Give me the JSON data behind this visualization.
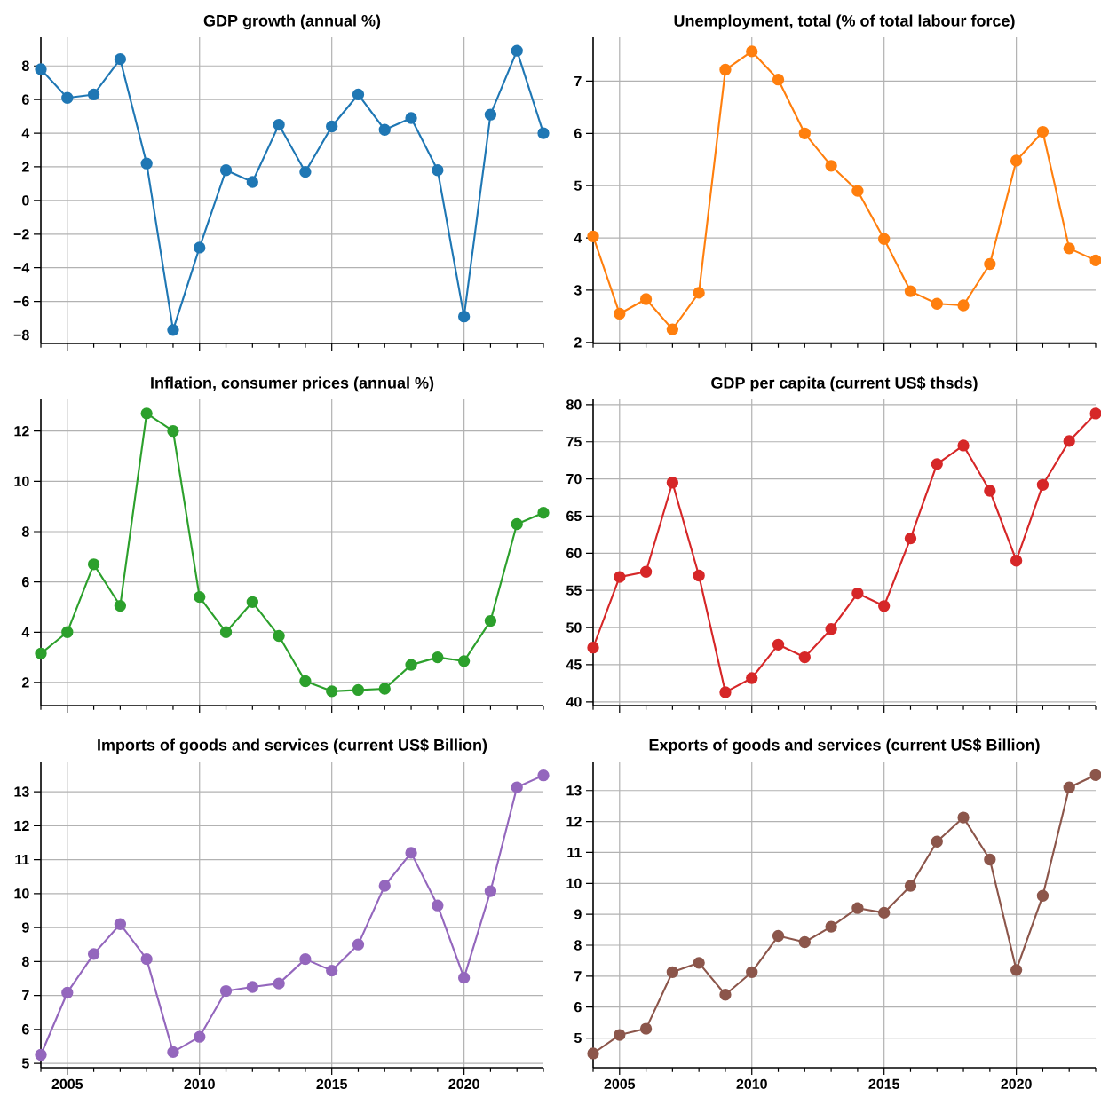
{
  "chart_data": [
    {
      "type": "line",
      "title": "GDP growth (annual %)",
      "x": [
        2004,
        2005,
        2006,
        2007,
        2008,
        2009,
        2010,
        2011,
        2012,
        2013,
        2014,
        2015,
        2016,
        2017,
        2018,
        2019,
        2020,
        2021,
        2022,
        2023
      ],
      "series": [
        {
          "color": "#1f77b4",
          "values": [
            7.8,
            6.1,
            6.3,
            8.4,
            2.2,
            -7.7,
            -2.8,
            1.8,
            1.1,
            4.5,
            1.7,
            4.4,
            6.3,
            4.2,
            4.9,
            1.8,
            -6.9,
            5.1,
            8.9,
            4.0
          ]
        }
      ],
      "xlim": [
        2004,
        2023
      ],
      "ylim": [
        -8.5,
        9.7
      ],
      "xticks": [
        {
          "value": 2004,
          "label": null
        },
        2005,
        {
          "value": 2006,
          "label": null
        },
        {
          "value": 2007,
          "label": null
        },
        {
          "value": 2008,
          "label": null
        },
        {
          "value": 2009,
          "label": null
        },
        2010,
        {
          "value": 2011,
          "label": null
        },
        {
          "value": 2012,
          "label": null
        },
        {
          "value": 2013,
          "label": null
        },
        {
          "value": 2014,
          "label": null
        },
        2015,
        {
          "value": 2016,
          "label": null
        },
        {
          "value": 2017,
          "label": null
        },
        {
          "value": 2018,
          "label": null
        },
        {
          "value": 2019,
          "label": null
        },
        2020,
        {
          "value": 2021,
          "label": null
        },
        {
          "value": 2022,
          "label": null
        },
        {
          "value": 2023,
          "label": null
        }
      ],
      "yticks": [
        {
          "value": -8,
          "label": "−8"
        },
        {
          "value": -6,
          "label": "−6"
        },
        {
          "value": -4,
          "label": "−4"
        },
        {
          "value": -2,
          "label": "−2"
        },
        0,
        2,
        4,
        6,
        8
      ],
      "grid": true,
      "marker": "circle",
      "line_style": "solid",
      "tick_labels": "y"
    },
    {
      "type": "line",
      "title": "Unemployment, total (% of total labour force)",
      "x": [
        2004,
        2005,
        2006,
        2007,
        2008,
        2009,
        2010,
        2011,
        2012,
        2013,
        2014,
        2015,
        2016,
        2017,
        2018,
        2019,
        2020,
        2021,
        2022,
        2023
      ],
      "series": [
        {
          "color": "#ff7f0e",
          "values": [
            4.03,
            2.55,
            2.83,
            2.25,
            2.95,
            7.22,
            7.57,
            7.03,
            6.0,
            5.38,
            4.9,
            3.98,
            2.98,
            2.74,
            2.71,
            3.5,
            5.48,
            6.03,
            3.8,
            3.57
          ]
        }
      ],
      "xlim": [
        2004,
        2023
      ],
      "ylim": [
        1.98,
        7.84
      ],
      "xticks": [
        {
          "value": 2004,
          "label": null
        },
        2005,
        {
          "value": 2006,
          "label": null
        },
        {
          "value": 2007,
          "label": null
        },
        {
          "value": 2008,
          "label": null
        },
        {
          "value": 2009,
          "label": null
        },
        2010,
        {
          "value": 2011,
          "label": null
        },
        {
          "value": 2012,
          "label": null
        },
        {
          "value": 2013,
          "label": null
        },
        {
          "value": 2014,
          "label": null
        },
        2015,
        {
          "value": 2016,
          "label": null
        },
        {
          "value": 2017,
          "label": null
        },
        {
          "value": 2018,
          "label": null
        },
        {
          "value": 2019,
          "label": null
        },
        2020,
        {
          "value": 2021,
          "label": null
        },
        {
          "value": 2022,
          "label": null
        },
        {
          "value": 2023,
          "label": null
        }
      ],
      "yticks": [
        2,
        3,
        4,
        5,
        6,
        7
      ],
      "grid": true,
      "marker": "circle",
      "line_style": "solid",
      "tick_labels": "y"
    },
    {
      "type": "line",
      "title": "Inflation, consumer prices (annual %)",
      "x": [
        2004,
        2005,
        2006,
        2007,
        2008,
        2009,
        2010,
        2011,
        2012,
        2013,
        2014,
        2015,
        2016,
        2017,
        2018,
        2019,
        2020,
        2021,
        2022,
        2023
      ],
      "series": [
        {
          "color": "#2ca02c",
          "values": [
            3.15,
            4.0,
            6.7,
            5.05,
            12.7,
            12.0,
            5.4,
            4.0,
            5.2,
            3.85,
            2.05,
            1.65,
            1.7,
            1.75,
            2.7,
            3.0,
            2.85,
            4.45,
            8.3,
            8.75
          ]
        }
      ],
      "xlim": [
        2004,
        2023
      ],
      "ylim": [
        1.08,
        13.26
      ],
      "xticks": [
        {
          "value": 2004,
          "label": null
        },
        2005,
        {
          "value": 2006,
          "label": null
        },
        {
          "value": 2007,
          "label": null
        },
        {
          "value": 2008,
          "label": null
        },
        {
          "value": 2009,
          "label": null
        },
        2010,
        {
          "value": 2011,
          "label": null
        },
        {
          "value": 2012,
          "label": null
        },
        {
          "value": 2013,
          "label": null
        },
        {
          "value": 2014,
          "label": null
        },
        2015,
        {
          "value": 2016,
          "label": null
        },
        {
          "value": 2017,
          "label": null
        },
        {
          "value": 2018,
          "label": null
        },
        {
          "value": 2019,
          "label": null
        },
        2020,
        {
          "value": 2021,
          "label": null
        },
        {
          "value": 2022,
          "label": null
        },
        {
          "value": 2023,
          "label": null
        }
      ],
      "yticks": [
        2,
        4,
        6,
        8,
        10,
        12
      ],
      "grid": true,
      "marker": "circle",
      "line_style": "solid",
      "tick_labels": "y"
    },
    {
      "type": "line",
      "title": "GDP per capita (current US$ thsds)",
      "x": [
        2004,
        2005,
        2006,
        2007,
        2008,
        2009,
        2010,
        2011,
        2012,
        2013,
        2014,
        2015,
        2016,
        2017,
        2018,
        2019,
        2020,
        2021,
        2022,
        2023
      ],
      "series": [
        {
          "color": "#d62728",
          "values": [
            47.3,
            56.8,
            57.5,
            69.5,
            57.0,
            41.3,
            43.2,
            47.7,
            46.0,
            49.8,
            54.6,
            52.9,
            62.0,
            72.0,
            74.5,
            68.4,
            59.0,
            69.2,
            75.1,
            78.8
          ]
        }
      ],
      "xlim": [
        2004,
        2023
      ],
      "ylim": [
        39.5,
        80.7
      ],
      "xticks": [
        {
          "value": 2004,
          "label": null
        },
        2005,
        {
          "value": 2006,
          "label": null
        },
        {
          "value": 2007,
          "label": null
        },
        {
          "value": 2008,
          "label": null
        },
        {
          "value": 2009,
          "label": null
        },
        2010,
        {
          "value": 2011,
          "label": null
        },
        {
          "value": 2012,
          "label": null
        },
        {
          "value": 2013,
          "label": null
        },
        {
          "value": 2014,
          "label": null
        },
        2015,
        {
          "value": 2016,
          "label": null
        },
        {
          "value": 2017,
          "label": null
        },
        {
          "value": 2018,
          "label": null
        },
        {
          "value": 2019,
          "label": null
        },
        2020,
        {
          "value": 2021,
          "label": null
        },
        {
          "value": 2022,
          "label": null
        },
        {
          "value": 2023,
          "label": null
        }
      ],
      "yticks": [
        40,
        45,
        50,
        55,
        60,
        65,
        70,
        75,
        80
      ],
      "grid": true,
      "marker": "circle",
      "line_style": "solid",
      "tick_labels": "y"
    },
    {
      "type": "line",
      "title": "Imports of goods and services (current US$ Billion)",
      "x": [
        2004,
        2005,
        2006,
        2007,
        2008,
        2009,
        2010,
        2011,
        2012,
        2013,
        2014,
        2015,
        2016,
        2017,
        2018,
        2019,
        2020,
        2021,
        2022,
        2023
      ],
      "series": [
        {
          "color": "#9467bd",
          "values": [
            5.25,
            7.08,
            8.22,
            9.1,
            8.07,
            5.33,
            5.78,
            7.13,
            7.25,
            7.35,
            8.07,
            7.73,
            8.5,
            10.23,
            11.2,
            9.65,
            7.52,
            10.07,
            13.13,
            13.48
          ]
        }
      ],
      "xlim": [
        2004,
        2023
      ],
      "ylim": [
        4.87,
        13.89
      ],
      "xticks": [
        {
          "value": 2004,
          "label": null
        },
        2005,
        {
          "value": 2006,
          "label": null
        },
        {
          "value": 2007,
          "label": null
        },
        {
          "value": 2008,
          "label": null
        },
        {
          "value": 2009,
          "label": null
        },
        2010,
        {
          "value": 2011,
          "label": null
        },
        {
          "value": 2012,
          "label": null
        },
        {
          "value": 2013,
          "label": null
        },
        {
          "value": 2014,
          "label": null
        },
        2015,
        {
          "value": 2016,
          "label": null
        },
        {
          "value": 2017,
          "label": null
        },
        {
          "value": 2018,
          "label": null
        },
        {
          "value": 2019,
          "label": null
        },
        2020,
        {
          "value": 2021,
          "label": null
        },
        {
          "value": 2022,
          "label": null
        },
        {
          "value": 2023,
          "label": null
        }
      ],
      "yticks": [
        5,
        6,
        7,
        8,
        9,
        10,
        11,
        12,
        13
      ],
      "grid": true,
      "marker": "circle",
      "line_style": "solid"
    },
    {
      "type": "line",
      "title": "Exports of goods and services (current US$ Billion)",
      "x": [
        2004,
        2005,
        2006,
        2007,
        2008,
        2009,
        2010,
        2011,
        2012,
        2013,
        2014,
        2015,
        2016,
        2017,
        2018,
        2019,
        2020,
        2021,
        2022,
        2023
      ],
      "series": [
        {
          "color": "#8c564b",
          "values": [
            4.5,
            5.1,
            5.3,
            7.13,
            7.43,
            6.4,
            7.13,
            8.3,
            8.1,
            8.6,
            9.2,
            9.05,
            9.92,
            11.35,
            12.13,
            10.77,
            7.2,
            9.6,
            13.1,
            13.5
          ]
        }
      ],
      "xlim": [
        2004,
        2023
      ],
      "ylim": [
        4.04,
        13.94
      ],
      "xticks": [
        {
          "value": 2004,
          "label": null
        },
        2005,
        {
          "value": 2006,
          "label": null
        },
        {
          "value": 2007,
          "label": null
        },
        {
          "value": 2008,
          "label": null
        },
        {
          "value": 2009,
          "label": null
        },
        2010,
        {
          "value": 2011,
          "label": null
        },
        {
          "value": 2012,
          "label": null
        },
        {
          "value": 2013,
          "label": null
        },
        {
          "value": 2014,
          "label": null
        },
        2015,
        {
          "value": 2016,
          "label": null
        },
        {
          "value": 2017,
          "label": null
        },
        {
          "value": 2018,
          "label": null
        },
        {
          "value": 2019,
          "label": null
        },
        2020,
        {
          "value": 2021,
          "label": null
        },
        {
          "value": 2022,
          "label": null
        },
        {
          "value": 2023,
          "label": null
        }
      ],
      "yticks": [
        5,
        6,
        7,
        8,
        9,
        10,
        11,
        12,
        13
      ],
      "grid": true,
      "marker": "circle",
      "line_style": "solid"
    }
  ]
}
